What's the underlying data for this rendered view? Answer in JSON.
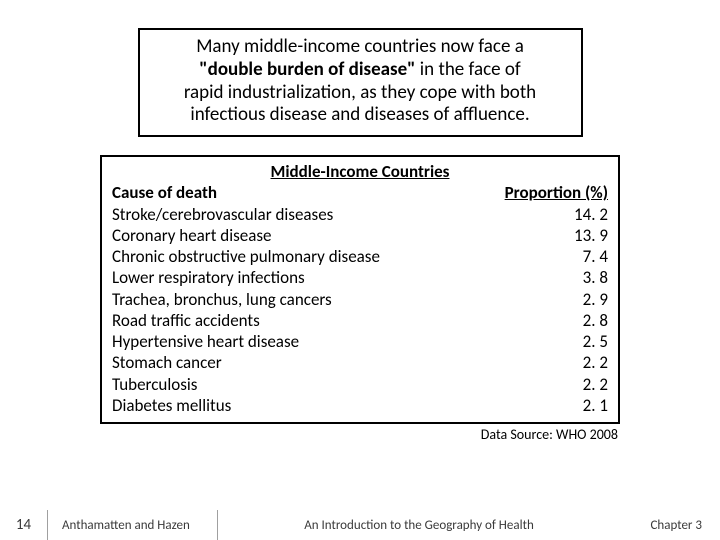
{
  "intro": {
    "line1": "Many middle-income countries now face a",
    "bold": "\"double burden of disease\"",
    "line2_after": " in the face of",
    "line3": "rapid industrialization, as they cope with both",
    "line4": "infectious disease and diseases of affluence."
  },
  "table": {
    "title": "Middle-Income Countries",
    "header_cause": "Cause of death",
    "header_prop": "Proportion (%)",
    "rows": [
      {
        "cause": "Stroke/cerebrovascular diseases",
        "value": "14. 2"
      },
      {
        "cause": "Coronary heart disease",
        "value": "13. 9"
      },
      {
        "cause": "Chronic obstructive pulmonary disease",
        "value": "7. 4"
      },
      {
        "cause": "Lower respiratory infections",
        "value": "3. 8"
      },
      {
        "cause": "Trachea, bronchus, lung cancers",
        "value": "2. 9"
      },
      {
        "cause": "Road traffic accidents",
        "value": "2. 8"
      },
      {
        "cause": "Hypertensive heart disease",
        "value": "2. 5"
      },
      {
        "cause": "Stomach cancer",
        "value": "2. 2"
      },
      {
        "cause": "Tuberculosis",
        "value": "2. 2"
      },
      {
        "cause": "Diabetes mellitus",
        "value": "2. 1"
      }
    ]
  },
  "source": "Data Source: WHO 2008",
  "footer": {
    "page": "14",
    "authors": "Anthamatten and Hazen",
    "title": "An Introduction to the Geography of Health",
    "chapter": "Chapter 3"
  }
}
